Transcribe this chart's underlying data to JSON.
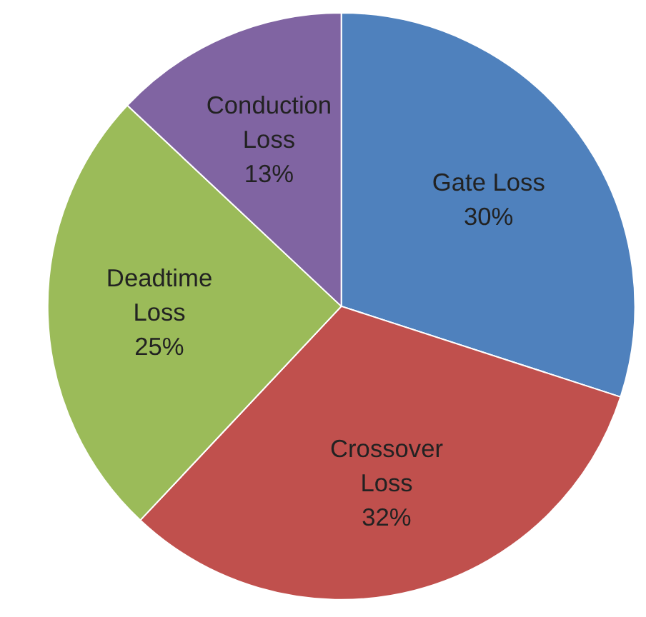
{
  "chart_data": {
    "type": "pie",
    "categories": [
      "Gate Loss",
      "Crossover Loss",
      "Deadtime Loss",
      "Conduction Loss"
    ],
    "values": [
      30,
      32,
      25,
      13
    ],
    "value_labels": [
      "30%",
      "32%",
      "25%",
      "13%"
    ],
    "colors": [
      "#4f81bd",
      "#c0504d",
      "#9bbb59",
      "#8064a2"
    ]
  }
}
